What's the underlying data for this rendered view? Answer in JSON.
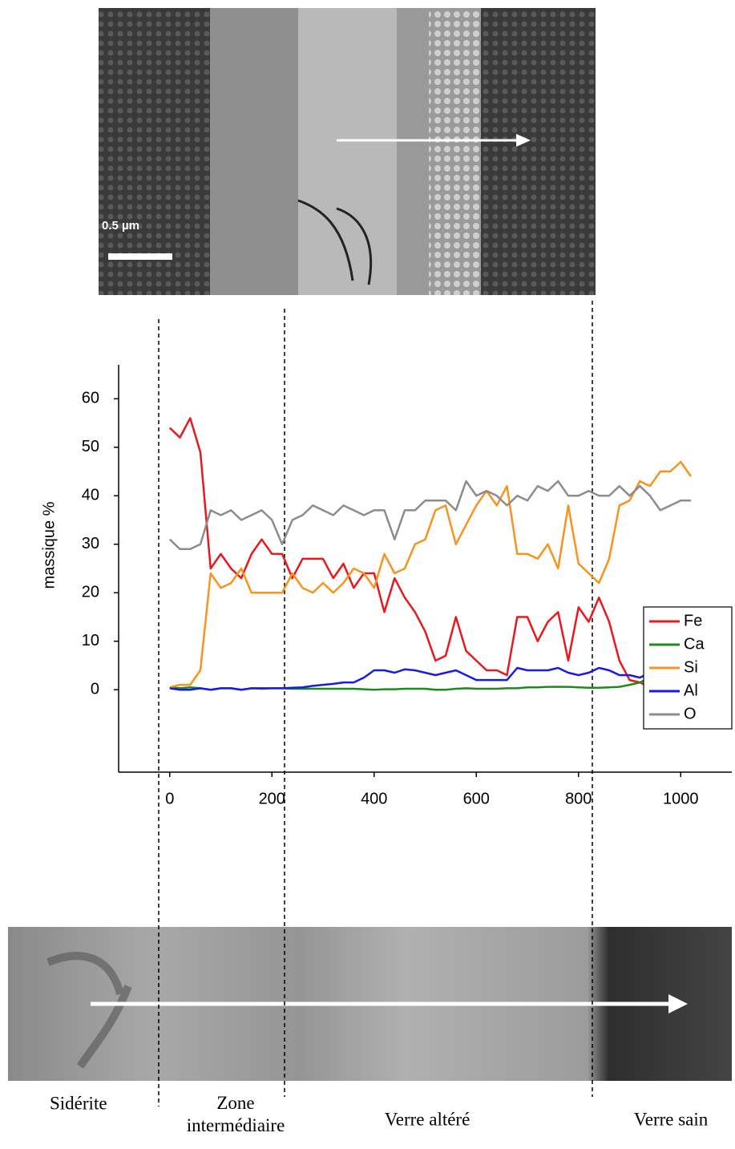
{
  "chart_data": {
    "type": "line",
    "ylabel": "massique %",
    "x": [
      0,
      20,
      40,
      60,
      80,
      100,
      120,
      140,
      160,
      180,
      200,
      220,
      240,
      260,
      280,
      300,
      320,
      340,
      360,
      380,
      400,
      420,
      440,
      460,
      480,
      500,
      520,
      540,
      560,
      580,
      600,
      620,
      640,
      660,
      680,
      700,
      720,
      740,
      760,
      780,
      800,
      820,
      840,
      860,
      880,
      900,
      920,
      940,
      960,
      980,
      1000,
      1020
    ],
    "series": [
      {
        "name": "Fe",
        "color": "#e8191c",
        "values": [
          54,
          52,
          56,
          49,
          25,
          28,
          25,
          23,
          28,
          31,
          28,
          28,
          23,
          27,
          27,
          27,
          23,
          26,
          21,
          24,
          24,
          16,
          23,
          19,
          16,
          12,
          6,
          7,
          15,
          8,
          6,
          4,
          4,
          3,
          15,
          15,
          10,
          14,
          16,
          6,
          17,
          14,
          19,
          14,
          6,
          2,
          1.5,
          0.5,
          0.8,
          0,
          0.3,
          0.5
        ]
      },
      {
        "name": "Ca",
        "color": "#1e8a1e",
        "values": [
          0.5,
          0.3,
          0.5,
          0.3,
          0,
          0.3,
          0.3,
          0,
          0.3,
          0.2,
          0.3,
          0.3,
          0.2,
          0.2,
          0.2,
          0.2,
          0.2,
          0.2,
          0.2,
          0.1,
          0,
          0.1,
          0.1,
          0.2,
          0.2,
          0.2,
          0,
          0,
          0.2,
          0.3,
          0.2,
          0.2,
          0.2,
          0.3,
          0.3,
          0.5,
          0.5,
          0.6,
          0.6,
          0.6,
          0.5,
          0.4,
          0.4,
          0.5,
          0.6,
          1,
          1.5,
          2.5,
          3,
          2.8,
          2.3,
          2.2
        ]
      },
      {
        "name": "Si",
        "color": "#f7931e",
        "values": [
          0.5,
          1,
          1,
          4,
          24,
          21,
          22,
          25,
          20,
          20,
          20,
          20,
          24,
          21,
          20,
          22,
          20,
          22,
          25,
          24,
          21,
          28,
          24,
          25,
          30,
          31,
          37,
          38,
          30,
          34,
          38,
          41,
          38,
          42,
          28,
          28,
          27,
          30,
          25,
          38,
          26,
          24,
          22,
          27,
          38,
          39,
          43,
          42,
          45,
          45,
          47,
          44
        ]
      },
      {
        "name": "Al",
        "color": "#1a1ae6",
        "values": [
          0.3,
          0,
          0,
          0.3,
          0,
          0.3,
          0.3,
          0,
          0.3,
          0.3,
          0.3,
          0.3,
          0.4,
          0.5,
          0.8,
          1,
          1.2,
          1.5,
          1.5,
          2.5,
          4,
          4,
          3.5,
          4.2,
          4,
          3.5,
          3,
          3.5,
          4,
          3,
          2,
          2,
          2,
          2,
          4.5,
          4,
          4,
          4,
          4.5,
          3.5,
          3,
          3.5,
          4.5,
          4,
          3,
          3,
          2.5,
          3.5,
          3,
          2.5,
          2.5,
          2.5
        ]
      },
      {
        "name": "O",
        "color": "#8c8c8c",
        "values": [
          31,
          29,
          29,
          30,
          37,
          36,
          37,
          35,
          36,
          37,
          35,
          30,
          35,
          36,
          38,
          37,
          36,
          38,
          37,
          36,
          37,
          37,
          31,
          37,
          37,
          39,
          39,
          39,
          37,
          43,
          40,
          41,
          40,
          38,
          40,
          39,
          42,
          41,
          43,
          40,
          40,
          41,
          40,
          40,
          42,
          40,
          42,
          40,
          37,
          38,
          39,
          39
        ]
      }
    ],
    "xlim": [
      -100,
      1100
    ],
    "xticks": [
      0,
      200,
      400,
      600,
      800,
      1000
    ],
    "ylim": [
      -17,
      67
    ],
    "yticks": [
      0,
      10,
      20,
      30,
      40,
      50,
      60
    ],
    "legend": "right"
  },
  "figure": {
    "scale_bar": "0.5 µm",
    "regions": [
      "Sidérite",
      "Zone intermédiaire",
      "Verre altéré",
      "Verre sain"
    ]
  }
}
